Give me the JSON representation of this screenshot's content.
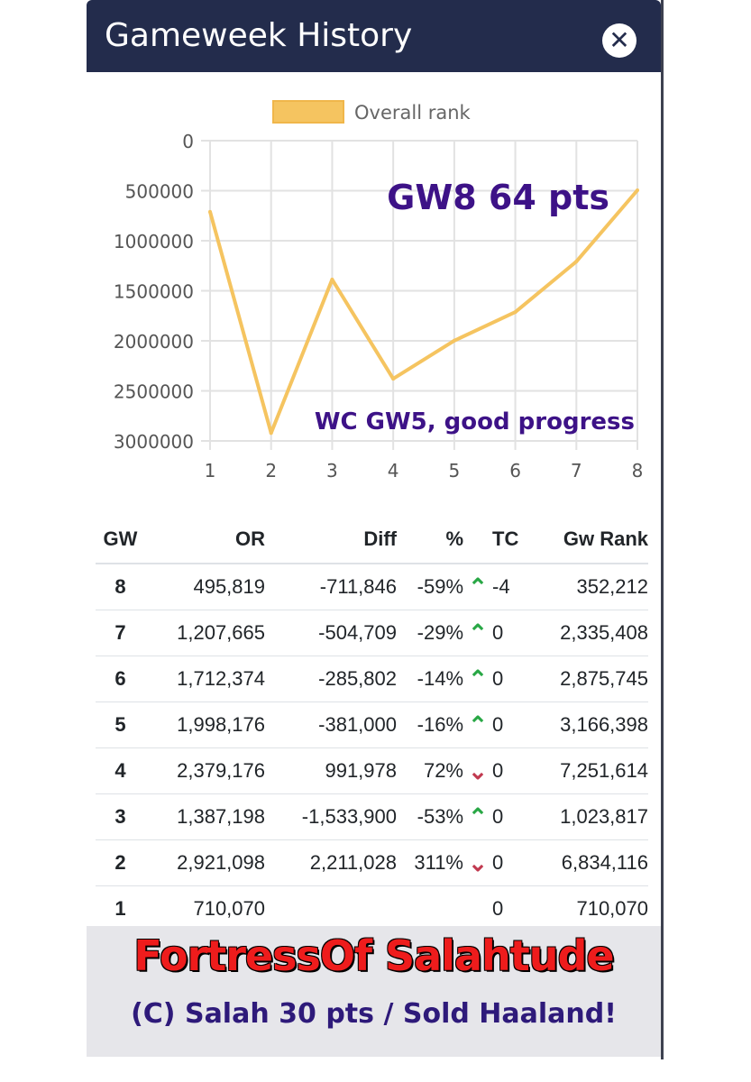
{
  "modal": {
    "title": "Gameweek History",
    "close_label": "✕"
  },
  "chart_data": {
    "type": "line",
    "x": [
      1,
      2,
      3,
      4,
      5,
      6,
      7,
      8
    ],
    "series": [
      {
        "name": "Overall rank",
        "values": [
          710070,
          2921098,
          1387198,
          2379176,
          1998176,
          1712374,
          1207665,
          495819
        ]
      }
    ],
    "y_ticks": [
      "0",
      "500000",
      "1000000",
      "1500000",
      "2000000",
      "2500000",
      "3000000"
    ],
    "x_ticks": [
      "1",
      "2",
      "3",
      "4",
      "5",
      "6",
      "7",
      "8"
    ],
    "ylim": [
      0,
      3000000
    ],
    "y_reversed": true,
    "grid": true,
    "legend": "top",
    "line_color": "#f5c460",
    "annotations": [
      "GW8 64 pts",
      "WC GW5, good progress"
    ],
    "annotation_color": "#3d1287"
  },
  "table": {
    "headers": {
      "gw": "GW",
      "or": "OR",
      "diff": "Diff",
      "pct": "%",
      "tc": "TC",
      "rank": "Gw Rank"
    },
    "rows": [
      {
        "gw": "8",
        "or": "495,819",
        "diff": "-711,846",
        "pct": "-59%",
        "arrow": "up",
        "tc": "-4",
        "rank": "352,212"
      },
      {
        "gw": "7",
        "or": "1,207,665",
        "diff": "-504,709",
        "pct": "-29%",
        "arrow": "up",
        "tc": "0",
        "rank": "2,335,408"
      },
      {
        "gw": "6",
        "or": "1,712,374",
        "diff": "-285,802",
        "pct": "-14%",
        "arrow": "up",
        "tc": "0",
        "rank": "2,875,745"
      },
      {
        "gw": "5",
        "or": "1,998,176",
        "diff": "-381,000",
        "pct": "-16%",
        "arrow": "up",
        "tc": "0",
        "rank": "3,166,398"
      },
      {
        "gw": "4",
        "or": "2,379,176",
        "diff": "991,978",
        "pct": "72%",
        "arrow": "down",
        "tc": "0",
        "rank": "7,251,614"
      },
      {
        "gw": "3",
        "or": "1,387,198",
        "diff": "-1,533,900",
        "pct": "-53%",
        "arrow": "up",
        "tc": "0",
        "rank": "1,023,817"
      },
      {
        "gw": "2",
        "or": "2,921,098",
        "diff": "2,211,028",
        "pct": "311%",
        "arrow": "down",
        "tc": "0",
        "rank": "6,834,116"
      },
      {
        "gw": "1",
        "or": "710,070",
        "diff": "",
        "pct": "",
        "arrow": "",
        "tc": "0",
        "rank": "710,070"
      }
    ]
  },
  "banner": {
    "title": "FortressOf Salahtude",
    "subtitle": "(C) Salah 30 pts / Sold Haaland!"
  }
}
